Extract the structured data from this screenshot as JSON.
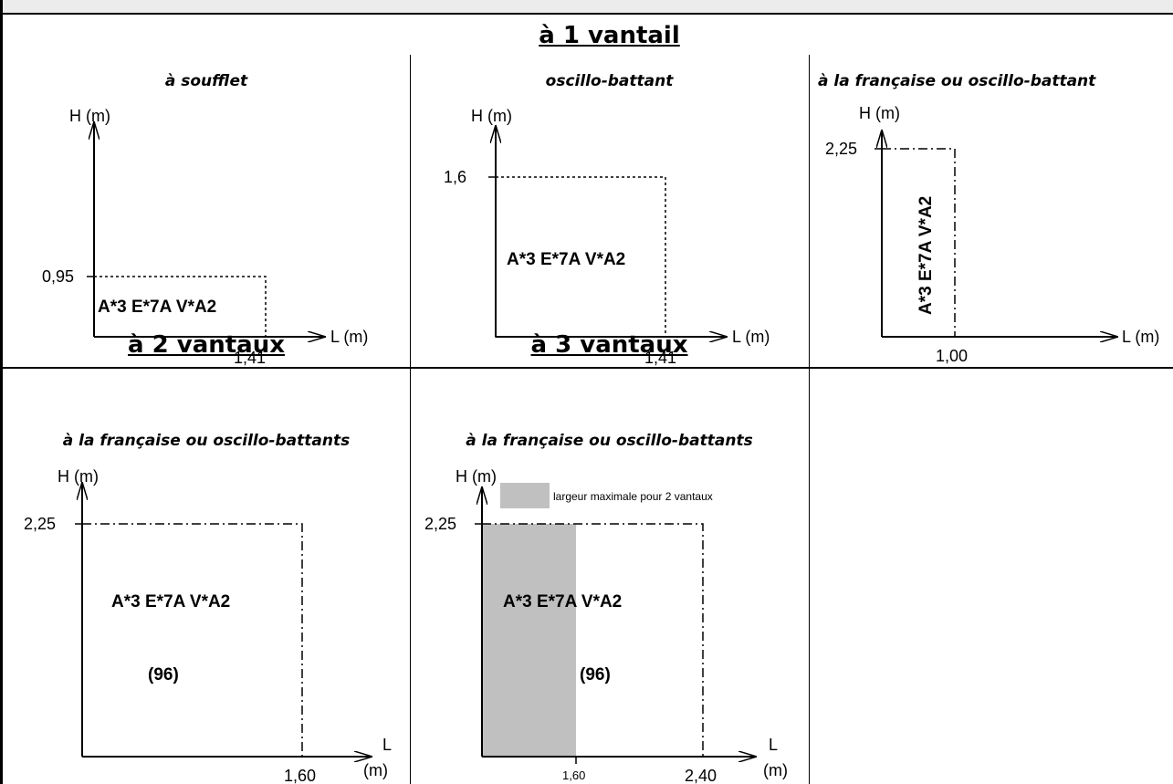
{
  "sections": {
    "one": "à 1 vantail",
    "two": "à 2 vantaux",
    "three": "à 3 vantaux"
  },
  "subtitles": {
    "soufflet": "à soufflet",
    "oscillo": "oscillo-battant",
    "francaise1": "à la française ou oscillo-battant",
    "francaise2": "à la française ou oscillo-battants",
    "francaise3": "à la française ou oscillo-battants"
  },
  "axes": {
    "h": "H (m)",
    "l": "L (m)",
    "l_short": "L",
    "m": "(m)"
  },
  "performance": "A*3 E*7A V*A2",
  "note": "(96)",
  "legend": "largeur maximale pour 2 vantaux",
  "values": {
    "soufflet_h": "0,95",
    "soufflet_l": "1,41",
    "oscillo_h": "1,6",
    "oscillo_l": "1,41",
    "fr1_h": "2,25",
    "fr1_l": "1,00",
    "fr2_h": "2,25",
    "fr2_l": "1,60",
    "fr3_h": "2,25",
    "fr3_l2": "1,60",
    "fr3_l3": "2,40"
  },
  "colors": {
    "shade": "#c0c0c0"
  }
}
